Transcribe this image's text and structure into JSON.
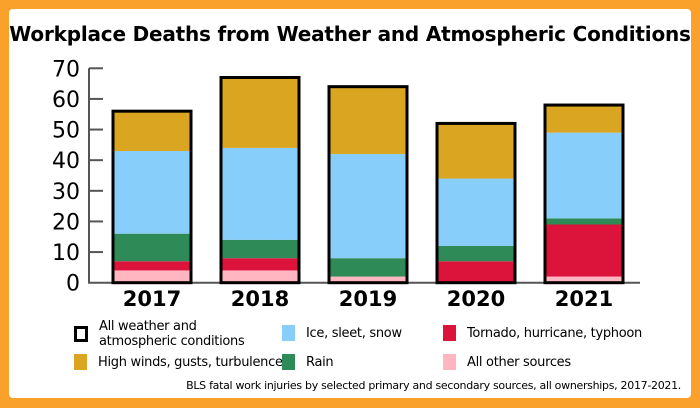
{
  "chart_data": {
    "type": "bar",
    "stacked": true,
    "title": "Workplace Deaths from Weather and Atmospheric Conditions",
    "categories": [
      "2017",
      "2018",
      "2019",
      "2020",
      "2021"
    ],
    "ylim": [
      0,
      70
    ],
    "yticks": [
      "0",
      "10",
      "20",
      "30",
      "40",
      "50",
      "60",
      "70"
    ],
    "grid": false,
    "series": [
      {
        "name": "All other sources",
        "color": "#FFB6C1",
        "values": [
          4,
          4,
          2,
          0,
          2
        ]
      },
      {
        "name": "Tornado, hurricane, typhoon",
        "color": "#DC143C",
        "values": [
          3,
          4,
          0,
          7,
          17
        ]
      },
      {
        "name": "Rain",
        "color": "#2E8B57",
        "values": [
          9,
          6,
          6,
          5,
          2
        ]
      },
      {
        "name": "Ice, sleet, snow",
        "color": "#87CEFA",
        "values": [
          27,
          30,
          34,
          22,
          28
        ]
      },
      {
        "name": "High winds, gusts, turbulence",
        "color": "#DAA520",
        "values": [
          13,
          23,
          22,
          18,
          9
        ]
      }
    ],
    "totals": {
      "name": "All weather and atmospheric conditions",
      "values": [
        56,
        67,
        64,
        52,
        58
      ]
    },
    "legend_placement": "bottom",
    "footnote": "BLS fatal work injuries by selected primary and secondary sources, all ownerships, 2017-2021."
  },
  "frame_color": "#F9A12B"
}
